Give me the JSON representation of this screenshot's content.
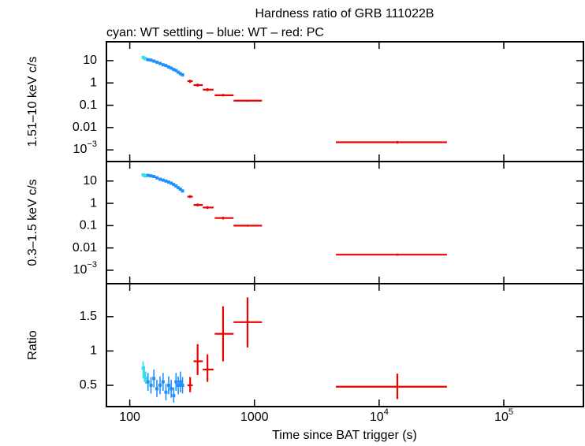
{
  "chart_data": [
    {
      "type": "scatter",
      "title": "Hardness ratio of GRB 111022B",
      "subtitle": "cyan: WT settling – blue: WT – red: PC",
      "ylabel": "1.51–10 keV c/s",
      "log_y": true,
      "ylim": [
        0.0003,
        70
      ],
      "yticks": [
        10,
        1,
        0.1,
        0.01,
        {
          "value": 0.001,
          "label": "10",
          "exponent": "−3"
        }
      ],
      "series": [
        {
          "color": "#33e0e8",
          "x": [
            128,
            131,
            134
          ],
          "values": [
            14,
            13,
            12
          ]
        },
        {
          "color": "#1e8fff",
          "x": [
            140,
            148,
            156,
            165,
            175,
            185,
            195,
            205,
            215,
            225,
            235,
            245,
            255,
            265
          ],
          "values": [
            11,
            10.5,
            9.5,
            8.5,
            7.5,
            6.5,
            6,
            5.2,
            4.6,
            4,
            3.6,
            3,
            2.6,
            2.3
          ]
        },
        {
          "color": "#ee0000",
          "x": [
            305,
            350,
            420,
            560,
            880,
            14000
          ],
          "x_low": [
            290,
            325,
            385,
            480,
            680,
            4500
          ],
          "x_high": [
            320,
            385,
            470,
            680,
            1150,
            35000
          ],
          "values": [
            1.2,
            0.8,
            0.5,
            0.28,
            0.16,
            0.0022
          ],
          "y_low": [
            1.0,
            0.68,
            0.43,
            0.25,
            0.145,
            0.0019
          ],
          "y_high": [
            1.4,
            0.93,
            0.58,
            0.32,
            0.175,
            0.0025
          ]
        }
      ]
    },
    {
      "type": "scatter",
      "ylabel": "0.3–1.5 keV c/s",
      "log_y": true,
      "ylim": [
        0.00025,
        75
      ],
      "yticks": [
        10,
        1,
        0.1,
        0.01,
        {
          "value": 0.001,
          "label": "10",
          "exponent": "−3"
        }
      ],
      "series": [
        {
          "color": "#33e0e8",
          "x": [
            128,
            131,
            134
          ],
          "values": [
            19,
            18,
            17
          ]
        },
        {
          "color": "#1e8fff",
          "x": [
            140,
            148,
            156,
            165,
            175,
            185,
            195,
            205,
            215,
            225,
            235,
            245,
            255,
            265
          ],
          "values": [
            18,
            17,
            16,
            14,
            12,
            11,
            10,
            9,
            8,
            7,
            6,
            5,
            4.3,
            3.6
          ]
        },
        {
          "color": "#ee0000",
          "x": [
            305,
            350,
            420,
            560,
            880,
            14000
          ],
          "x_low": [
            290,
            325,
            385,
            480,
            680,
            4500
          ],
          "x_high": [
            320,
            385,
            470,
            680,
            1150,
            35000
          ],
          "values": [
            2.0,
            0.85,
            0.65,
            0.22,
            0.1,
            0.005
          ],
          "y_low": [
            1.75,
            0.73,
            0.56,
            0.19,
            0.09,
            0.0045
          ],
          "y_high": [
            2.3,
            0.98,
            0.75,
            0.25,
            0.11,
            0.0056
          ]
        }
      ]
    },
    {
      "type": "scatter",
      "ylabel": "Ratio",
      "log_y": false,
      "ylim": [
        0.19,
        1.98
      ],
      "yticks": [
        1.5,
        1,
        0.5
      ],
      "xlabel": "Time since BAT trigger (s)",
      "log_x": true,
      "xlim": [
        65,
        435000
      ],
      "xticks": [
        100,
        1000,
        {
          "value": 10000,
          "label": "10",
          "exponent": "4"
        },
        {
          "value": 100000,
          "label": "10",
          "exponent": "5"
        }
      ],
      "series": [
        {
          "color": "#33e0e8",
          "x": [
            128,
            131,
            134
          ],
          "values": [
            0.75,
            0.65,
            0.6
          ],
          "y_low": [
            0.6,
            0.55,
            0.52
          ],
          "y_high": [
            0.85,
            0.78,
            0.7
          ]
        },
        {
          "color": "#1e8fff",
          "x": [
            140,
            148,
            156,
            165,
            175,
            185,
            195,
            205,
            215,
            225,
            235,
            245,
            255,
            265
          ],
          "values": [
            0.55,
            0.5,
            0.6,
            0.45,
            0.5,
            0.55,
            0.4,
            0.5,
            0.45,
            0.35,
            0.55,
            0.5,
            0.55,
            0.5
          ],
          "y_low": [
            0.42,
            0.38,
            0.47,
            0.33,
            0.37,
            0.42,
            0.28,
            0.37,
            0.32,
            0.25,
            0.42,
            0.37,
            0.4,
            0.38
          ],
          "y_high": [
            0.68,
            0.62,
            0.73,
            0.58,
            0.63,
            0.68,
            0.52,
            0.63,
            0.58,
            0.47,
            0.68,
            0.63,
            0.7,
            0.62
          ]
        },
        {
          "color": "#ee0000",
          "x": [
            305,
            350,
            420,
            560,
            880,
            14000
          ],
          "x_low": [
            290,
            325,
            385,
            480,
            680,
            4500
          ],
          "x_high": [
            320,
            385,
            470,
            680,
            1150,
            35000
          ],
          "values": [
            0.5,
            0.85,
            0.73,
            1.25,
            1.42,
            0.48
          ],
          "y_low": [
            0.4,
            0.65,
            0.55,
            0.85,
            1.05,
            0.3
          ],
          "y_high": [
            0.62,
            1.1,
            0.95,
            1.65,
            1.78,
            0.67
          ]
        }
      ]
    }
  ]
}
